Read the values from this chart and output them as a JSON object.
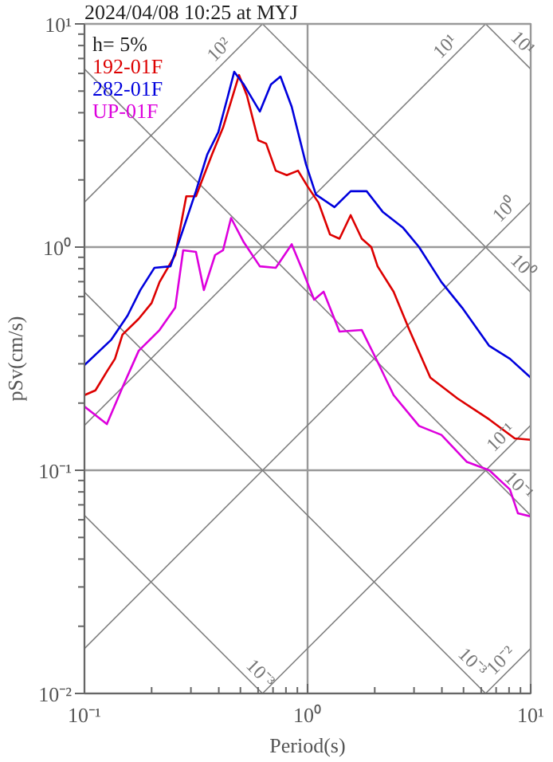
{
  "chart_data": {
    "type": "line",
    "title": "2024/04/08 10:25 at MYJ",
    "xlabel": "Period(s)",
    "ylabel": "pSv(cm/s)",
    "log": "xy",
    "grid": true,
    "legend": "top left",
    "xlim": [
      0.1,
      10
    ],
    "ylim": [
      0.01,
      10
    ],
    "xticks": [
      {
        "value": 0.1,
        "label": "10⁻¹"
      },
      {
        "value": 0.2,
        "label": null
      },
      {
        "value": 0.3,
        "label": null
      },
      {
        "value": 0.4,
        "label": null
      },
      {
        "value": 0.5,
        "label": null
      },
      {
        "value": 0.6,
        "label": null
      },
      {
        "value": 0.7,
        "label": null
      },
      {
        "value": 0.8,
        "label": null
      },
      {
        "value": 0.9,
        "label": null
      },
      {
        "value": 1,
        "label": "10⁰"
      },
      {
        "value": 2,
        "label": null
      },
      {
        "value": 3,
        "label": null
      },
      {
        "value": 4,
        "label": null
      },
      {
        "value": 5,
        "label": null
      },
      {
        "value": 6,
        "label": null
      },
      {
        "value": 7,
        "label": null
      },
      {
        "value": 8,
        "label": null
      },
      {
        "value": 9,
        "label": null
      },
      {
        "value": 10,
        "label": "10¹"
      }
    ],
    "yticks": [
      {
        "value": 0.01,
        "label": "10⁻²"
      },
      {
        "value": 0.02,
        "label": null
      },
      {
        "value": 0.03,
        "label": null
      },
      {
        "value": 0.04,
        "label": null
      },
      {
        "value": 0.05,
        "label": null
      },
      {
        "value": 0.06,
        "label": null
      },
      {
        "value": 0.07,
        "label": null
      },
      {
        "value": 0.08,
        "label": null
      },
      {
        "value": 0.09,
        "label": null
      },
      {
        "value": 0.1,
        "label": "10⁻¹"
      },
      {
        "value": 0.2,
        "label": null
      },
      {
        "value": 0.3,
        "label": null
      },
      {
        "value": 0.4,
        "label": null
      },
      {
        "value": 0.5,
        "label": null
      },
      {
        "value": 0.6,
        "label": null
      },
      {
        "value": 0.7,
        "label": null
      },
      {
        "value": 0.8,
        "label": null
      },
      {
        "value": 0.9,
        "label": null
      },
      {
        "value": 1,
        "label": "10⁰"
      },
      {
        "value": 2,
        "label": null
      },
      {
        "value": 3,
        "label": null
      },
      {
        "value": 4,
        "label": null
      },
      {
        "value": 5,
        "label": null
      },
      {
        "value": 6,
        "label": null
      },
      {
        "value": 7,
        "label": null
      },
      {
        "value": 8,
        "label": null
      },
      {
        "value": 9,
        "label": null
      },
      {
        "value": 10,
        "label": "10¹"
      }
    ],
    "series": [
      {
        "color": "#808080",
        "x": [
          0.1,
          0.628
        ],
        "values": [
          0.0628,
          0.01
        ]
      },
      {
        "color": "#808080",
        "x": [
          0.1,
          6.28
        ],
        "values": [
          0.628,
          0.01
        ]
      },
      {
        "color": "#808080",
        "x": [
          0.1,
          10
        ],
        "values": [
          6.28,
          0.0628
        ]
      },
      {
        "color": "#808080",
        "x": [
          0.628,
          10
        ],
        "values": [
          10,
          0.628
        ]
      },
      {
        "color": "#808080",
        "x": [
          6.28,
          10
        ],
        "values": [
          10,
          6.28
        ]
      },
      {
        "color": "#808080",
        "x": [
          6.28,
          10
        ],
        "values": [
          0.01,
          0.0159
        ]
      },
      {
        "color": "#808080",
        "x": [
          0.628,
          10
        ],
        "values": [
          0.01,
          0.159
        ]
      },
      {
        "color": "#808080",
        "x": [
          0.1,
          10
        ],
        "values": [
          0.0159,
          1.59
        ]
      },
      {
        "color": "#808080",
        "x": [
          0.1,
          6.28
        ],
        "values": [
          0.159,
          10
        ]
      },
      {
        "color": "#808080",
        "x": [
          0.1,
          0.628
        ],
        "values": [
          1.59,
          10
        ]
      },
      {
        "name": "192-01F",
        "color": "#dd0000",
        "x": [
          0.1,
          0.112,
          0.126,
          0.137,
          0.148,
          0.175,
          0.2,
          0.217,
          0.255,
          0.286,
          0.316,
          0.373,
          0.418,
          0.469,
          0.493,
          0.535,
          0.601,
          0.652,
          0.72,
          0.807,
          0.906,
          1,
          1.12,
          1.26,
          1.39,
          1.56,
          1.75,
          1.93,
          2.06,
          2.43,
          2.86,
          3.55,
          4.69,
          6.52,
          8.48,
          10
        ],
        "values": [
          0.217,
          0.228,
          0.277,
          0.316,
          0.405,
          0.477,
          0.562,
          0.697,
          0.921,
          1.69,
          1.69,
          2.6,
          3.43,
          5.01,
          5.9,
          4.77,
          3.01,
          2.91,
          2.2,
          2.1,
          2.2,
          1.87,
          1.58,
          1.14,
          1.09,
          1.39,
          1.09,
          1.0,
          0.82,
          0.631,
          0.425,
          0.26,
          0.21,
          0.169,
          0.139,
          0.137
        ]
      },
      {
        "name": "282-01F",
        "color": "#0000dd",
        "x": [
          0.1,
          0.132,
          0.156,
          0.178,
          0.206,
          0.243,
          0.268,
          0.316,
          0.355,
          0.398,
          0.44,
          0.469,
          0.518,
          0.611,
          0.685,
          0.756,
          0.849,
          0.984,
          1.09,
          1.32,
          1.56,
          1.84,
          2.17,
          2.68,
          3.16,
          3.98,
          4.93,
          6.52,
          8.07,
          10
        ],
        "values": [
          0.296,
          0.385,
          0.493,
          0.642,
          0.808,
          0.82,
          1.09,
          1.78,
          2.6,
          3.27,
          4.77,
          6.1,
          5.35,
          4.05,
          5.35,
          5.81,
          4.25,
          2.35,
          1.72,
          1.51,
          1.78,
          1.78,
          1.44,
          1.22,
          1.0,
          0.697,
          0.535,
          0.361,
          0.316,
          0.26
        ]
      },
      {
        "name": "UP-01F",
        "color": "#dd00dd",
        "x": [
          0.1,
          0.126,
          0.148,
          0.175,
          0.217,
          0.255,
          0.277,
          0.316,
          0.343,
          0.385,
          0.418,
          0.454,
          0.518,
          0.611,
          0.72,
          0.849,
          0.952,
          1.07,
          1.18,
          1.39,
          1.75,
          2.06,
          2.43,
          3.16,
          3.98,
          5.18,
          6.52,
          8.07,
          8.77,
          10
        ],
        "values": [
          0.193,
          0.161,
          0.235,
          0.343,
          0.425,
          0.535,
          0.968,
          0.952,
          0.642,
          0.921,
          0.968,
          1.35,
          1.05,
          0.82,
          0.808,
          1.03,
          0.781,
          0.581,
          0.631,
          0.418,
          0.425,
          0.306,
          0.217,
          0.158,
          0.144,
          0.109,
          0.1,
          0.082,
          0.0641,
          0.0621
        ]
      }
    ],
    "annotations": [
      "h= 5%",
      {
        "text": "10²",
        "x": 0.44,
        "y": 7.0
      },
      {
        "text": "10¹",
        "x": 4.54,
        "y": 7.23
      },
      {
        "text": "10¹",
        "x": 8.4,
        "y": 7.48
      },
      {
        "text": "10⁰",
        "x": 8.4,
        "y": 1.34
      },
      {
        "text": "10⁰",
        "x": 8.4,
        "y": 0.748
      },
      {
        "text": "10⁻¹",
        "x": 8.07,
        "y": 0.128
      },
      {
        "text": "10⁻¹",
        "x": 8.07,
        "y": 0.0778
      },
      {
        "text": "10⁻³",
        "x": 0.56,
        "y": 0.0112
      },
      {
        "text": "10⁻³",
        "x": 5.0,
        "y": 0.0126
      },
      {
        "text": "10⁻²",
        "x": 8.07,
        "y": 0.0128
      }
    ]
  }
}
